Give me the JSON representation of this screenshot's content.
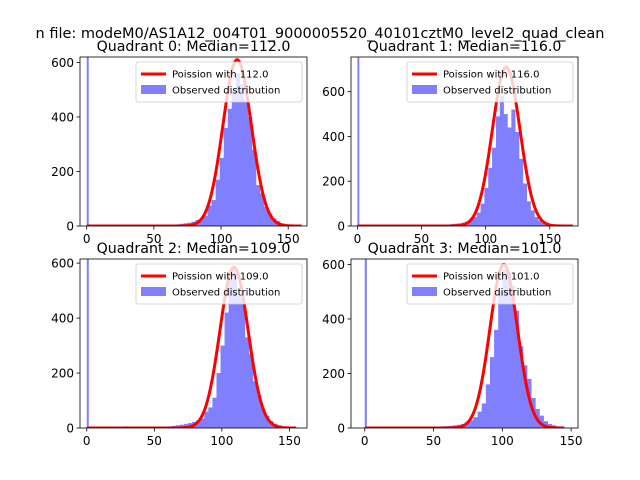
{
  "figure": {
    "suptitle": "n file: modeM0/AS1A12_004T01_9000005520_40101cztM0_level2_quad_clean",
    "bar_color": "#8080ff",
    "fit_color": "#ff0000"
  },
  "chart_data": [
    {
      "type": "bar",
      "title": "Quadrant 0: Median=112.0",
      "xlim": [
        -5,
        164
      ],
      "ylim": [
        0,
        620
      ],
      "xticks": [
        0,
        50,
        100,
        150
      ],
      "yticks": [
        0,
        200,
        400,
        600
      ],
      "legend_placement": "top-right",
      "legend": [
        "Poission with 112.0",
        "Observed distribution"
      ],
      "outlier": {
        "x": 0,
        "width": 1.5,
        "value": 620
      },
      "series": [
        {
          "name": "Observed distribution",
          "bin_width": 3,
          "x": [
            60,
            63,
            66,
            69,
            72,
            75,
            78,
            81,
            84,
            87,
            90,
            93,
            96,
            99,
            102,
            105,
            108,
            111,
            114,
            117,
            120,
            123,
            126,
            129,
            132,
            135,
            138,
            141,
            144,
            147,
            150
          ],
          "values": [
            5,
            5,
            6,
            8,
            10,
            12,
            16,
            22,
            28,
            38,
            75,
            95,
            170,
            250,
            360,
            430,
            500,
            560,
            520,
            460,
            400,
            280,
            150,
            120,
            70,
            45,
            28,
            18,
            10,
            6,
            4
          ]
        },
        {
          "name": "Poission with 112.0",
          "lambda": 112,
          "peak": 610,
          "xrange": [
            0,
            160
          ]
        }
      ]
    },
    {
      "type": "bar",
      "title": "Quadrant 1: Median=116.0",
      "xlim": [
        -5,
        172
      ],
      "ylim": [
        0,
        755
      ],
      "xticks": [
        0,
        50,
        100,
        150
      ],
      "yticks": [
        0,
        200,
        400,
        600
      ],
      "legend_placement": "top-right",
      "legend": [
        "Poission with 116.0",
        "Observed distribution"
      ],
      "outlier": {
        "x": 0,
        "width": 1.5,
        "value": 755
      },
      "series": [
        {
          "name": "Observed distribution",
          "bin_width": 3,
          "x": [
            60,
            63,
            66,
            69,
            72,
            75,
            78,
            81,
            84,
            87,
            90,
            93,
            96,
            99,
            102,
            105,
            108,
            111,
            114,
            117,
            120,
            123,
            126,
            129,
            132,
            135,
            138,
            141,
            144,
            147,
            150,
            153,
            156
          ],
          "values": [
            4,
            5,
            5,
            6,
            8,
            10,
            12,
            15,
            20,
            30,
            40,
            60,
            100,
            170,
            260,
            350,
            490,
            580,
            500,
            440,
            520,
            420,
            300,
            190,
            110,
            70,
            40,
            25,
            15,
            10,
            6,
            4,
            3
          ]
        },
        {
          "name": "Poission with 116.0",
          "lambda": 116,
          "peak": 710,
          "xrange": [
            0,
            168
          ]
        }
      ]
    },
    {
      "type": "bar",
      "title": "Quadrant 2: Median=109.0",
      "xlim": [
        -5,
        163
      ],
      "ylim": [
        0,
        615
      ],
      "xticks": [
        0,
        50,
        100,
        150
      ],
      "yticks": [
        0,
        200,
        400,
        600
      ],
      "legend_placement": "top-right",
      "legend": [
        "Poission with 109.0",
        "Observed distribution"
      ],
      "outlier": {
        "x": 0,
        "width": 1.5,
        "value": 615
      },
      "series": [
        {
          "name": "Observed distribution",
          "bin_width": 3,
          "x": [
            27,
            60,
            63,
            66,
            69,
            72,
            75,
            78,
            81,
            84,
            87,
            90,
            93,
            96,
            99,
            102,
            105,
            108,
            111,
            114,
            117,
            120,
            123,
            126,
            129,
            132,
            135,
            138,
            141,
            144
          ],
          "values": [
            6,
            6,
            8,
            10,
            12,
            15,
            18,
            22,
            28,
            35,
            60,
            75,
            110,
            200,
            300,
            420,
            540,
            580,
            480,
            470,
            330,
            270,
            170,
            120,
            70,
            45,
            25,
            15,
            10,
            6
          ]
        },
        {
          "name": "Poission with 109.0",
          "lambda": 109,
          "peak": 585,
          "xrange": [
            0,
            155
          ]
        }
      ]
    },
    {
      "type": "bar",
      "title": "Quadrant 3: Median=101.0",
      "xlim": [
        -10,
        155
      ],
      "ylim": [
        0,
        620
      ],
      "xticks": [
        0,
        50,
        100,
        150
      ],
      "yticks": [
        0,
        200,
        400,
        600
      ],
      "legend_placement": "top-right",
      "legend": [
        "Poission with 101.0",
        "Observed distribution"
      ],
      "outlier": {
        "x": 0,
        "width": 1.5,
        "value": 620
      },
      "series": [
        {
          "name": "Observed distribution",
          "bin_width": 3,
          "x": [
            52,
            55,
            58,
            61,
            64,
            67,
            70,
            73,
            76,
            79,
            82,
            85,
            88,
            91,
            94,
            97,
            100,
            103,
            106,
            109,
            112,
            115,
            118,
            121,
            124,
            127,
            130,
            133,
            136,
            139,
            142
          ],
          "values": [
            5,
            6,
            7,
            8,
            10,
            12,
            15,
            20,
            28,
            40,
            60,
            90,
            160,
            260,
            360,
            500,
            580,
            570,
            520,
            430,
            300,
            230,
            180,
            110,
            70,
            45,
            25,
            15,
            10,
            6,
            4
          ]
        },
        {
          "name": "Poission with 101.0",
          "lambda": 101,
          "peak": 600,
          "xrange": [
            0,
            145
          ]
        }
      ]
    }
  ]
}
